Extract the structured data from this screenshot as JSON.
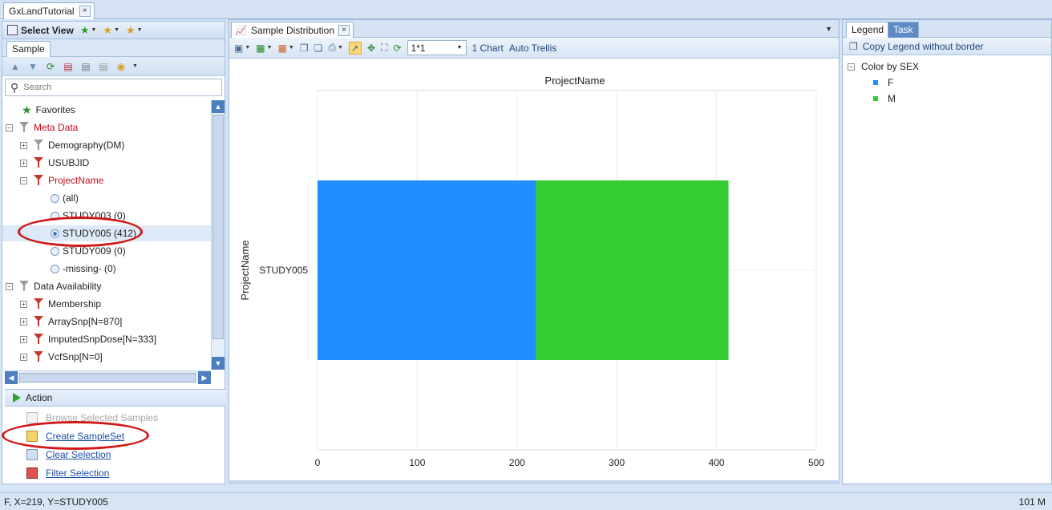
{
  "doc_tab": {
    "title": "GxLandTutorial",
    "close": "×"
  },
  "left_pane": {
    "title": "Select View",
    "tab": "Sample",
    "search_placeholder": "Search",
    "tree": [
      {
        "label": "Favorites",
        "kind": "star"
      },
      {
        "label": "Meta Data",
        "kind": "funnel-red",
        "expander": "−"
      },
      {
        "label": "Demography(DM)",
        "kind": "funnel",
        "expander": "+"
      },
      {
        "label": "USUBJID",
        "kind": "funnel-red",
        "expander": "+"
      },
      {
        "label": "ProjectName",
        "kind": "funnel-red",
        "expander": "−"
      },
      {
        "label": "(all)",
        "kind": "radio"
      },
      {
        "label": "STUDY003 (0)",
        "kind": "radio"
      },
      {
        "label": "STUDY005 (412)",
        "kind": "radio-on"
      },
      {
        "label": "STUDY009 (0)",
        "kind": "radio"
      },
      {
        "label": "-missing- (0)",
        "kind": "radio"
      },
      {
        "label": "Data Availability",
        "kind": "funnel",
        "expander": "−"
      },
      {
        "label": "Membership",
        "kind": "funnel-red",
        "expander": "+"
      },
      {
        "label": "ArraySnp[N=870]",
        "kind": "funnel-red",
        "expander": "+"
      },
      {
        "label": "ImputedSnpDose[N=333]",
        "kind": "funnel-red",
        "expander": "+"
      },
      {
        "label": "VcfSnp[N=0]",
        "kind": "funnel-red",
        "expander": "+"
      }
    ],
    "action_header": "Action",
    "actions": [
      {
        "label": "Browse Selected Samples",
        "enabled": false
      },
      {
        "label": "Create SampleSet",
        "enabled": true
      },
      {
        "label": "Clear Selection",
        "enabled": true
      },
      {
        "label": "Filter Selection",
        "enabled": true
      }
    ]
  },
  "center_pane": {
    "tab_title": "Sample Distribution",
    "trellis_value": "1*1",
    "chart_count_label": "1 Chart",
    "auto_trellis_label": "Auto Trellis"
  },
  "right_pane": {
    "tabs": [
      "Legend",
      "Task"
    ],
    "copy_legend_label": "Copy Legend  without border",
    "color_by_label": "Color by SEX",
    "legend_items": [
      {
        "label": "F",
        "color": "#1f8fff"
      },
      {
        "label": "M",
        "color": "#33cc33"
      }
    ]
  },
  "status_bar": {
    "left": "F, X=219, Y=STUDY005",
    "right": "101 M"
  },
  "chart_data": {
    "type": "bar",
    "orientation": "horizontal",
    "stacked": true,
    "title": "ProjectName",
    "ylabel": "ProjectName",
    "xlabel": "",
    "categories": [
      "STUDY005"
    ],
    "series": [
      {
        "name": "F",
        "values": [
          219
        ],
        "color": "#1f8fff"
      },
      {
        "name": "M",
        "values": [
          193
        ],
        "color": "#33cc33"
      }
    ],
    "xlim": [
      0,
      500
    ],
    "xticks": [
      0,
      100,
      200,
      300,
      400,
      500
    ],
    "grid": true
  }
}
